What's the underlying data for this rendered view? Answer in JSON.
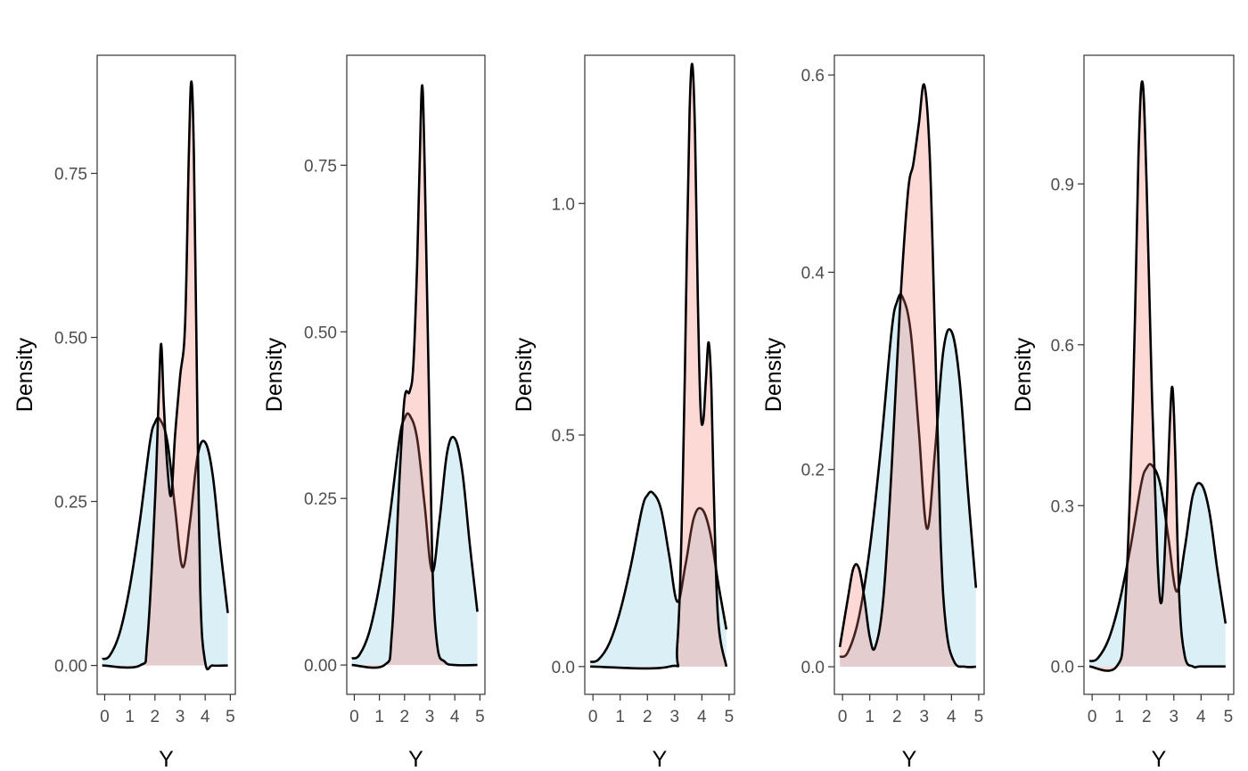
{
  "colors": {
    "red_fill": "#F8766D",
    "blue_fill": "#A6D8E8",
    "line": "#000000",
    "panel_border": "#333333",
    "tick_text": "#4d4d4d"
  },
  "chart_data": [
    {
      "type": "area",
      "xlabel": "Y",
      "ylabel": "Density",
      "x_ticks": [
        "0",
        "1",
        "2",
        "3",
        "4",
        "5"
      ],
      "y_ticks": [
        "0.00",
        "0.25",
        "0.50",
        "0.75"
      ],
      "xlim": [
        -0.3,
        5.2
      ],
      "ylim": [
        -0.044,
        0.93
      ],
      "series": [
        {
          "color": "red",
          "x": [
            -0.1,
            1.4,
            1.7,
            2.0,
            2.15,
            2.25,
            2.35,
            2.5,
            2.65,
            2.8,
            3.0,
            3.2,
            3.35,
            3.45,
            3.55,
            3.65,
            3.8,
            4.0,
            4.3,
            4.9
          ],
          "y": [
            0.0,
            0.0,
            0.04,
            0.25,
            0.41,
            0.49,
            0.4,
            0.3,
            0.26,
            0.35,
            0.44,
            0.52,
            0.78,
            0.89,
            0.78,
            0.5,
            0.12,
            0.005,
            0.0,
            0.0
          ]
        },
        {
          "color": "blue",
          "x": [
            -0.1,
            0.2,
            0.6,
            1.0,
            1.4,
            1.8,
            2.0,
            2.2,
            2.5,
            2.8,
            3.1,
            3.4,
            3.7,
            4.0,
            4.3,
            4.6,
            4.9
          ],
          "y": [
            0.01,
            0.015,
            0.05,
            0.12,
            0.22,
            0.34,
            0.37,
            0.375,
            0.34,
            0.24,
            0.15,
            0.22,
            0.32,
            0.34,
            0.29,
            0.18,
            0.08
          ]
        }
      ]
    },
    {
      "type": "area",
      "xlabel": "Y",
      "ylabel": "Density",
      "x_ticks": [
        "0",
        "1",
        "2",
        "3",
        "4",
        "5"
      ],
      "y_ticks": [
        "0.00",
        "0.25",
        "0.50",
        "0.75"
      ],
      "xlim": [
        -0.3,
        5.2
      ],
      "ylim": [
        -0.044,
        0.915
      ],
      "series": [
        {
          "color": "red",
          "x": [
            -0.1,
            1.2,
            1.5,
            1.8,
            2.0,
            2.2,
            2.35,
            2.5,
            2.6,
            2.7,
            2.8,
            2.95,
            3.1,
            3.3,
            3.6,
            4.0,
            4.9
          ],
          "y": [
            0.0,
            0.0,
            0.05,
            0.28,
            0.4,
            0.41,
            0.45,
            0.6,
            0.75,
            0.87,
            0.75,
            0.45,
            0.16,
            0.03,
            0.005,
            0.0,
            0.0
          ]
        },
        {
          "color": "blue",
          "x": [
            -0.1,
            0.2,
            0.6,
            1.0,
            1.4,
            1.8,
            2.0,
            2.2,
            2.5,
            2.8,
            3.1,
            3.4,
            3.7,
            4.0,
            4.3,
            4.6,
            4.9
          ],
          "y": [
            0.01,
            0.015,
            0.05,
            0.12,
            0.22,
            0.34,
            0.37,
            0.375,
            0.34,
            0.24,
            0.14,
            0.22,
            0.32,
            0.34,
            0.29,
            0.18,
            0.08
          ]
        }
      ]
    },
    {
      "type": "area",
      "xlabel": "Y",
      "ylabel": "Density",
      "x_ticks": [
        "0",
        "1",
        "2",
        "3",
        "4",
        "5"
      ],
      "y_ticks": [
        "0.0",
        "0.5",
        "1.0"
      ],
      "xlim": [
        -0.3,
        5.2
      ],
      "ylim": [
        -0.06,
        1.32
      ],
      "series": [
        {
          "color": "red",
          "x": [
            -0.1,
            2.8,
            3.1,
            3.3,
            3.45,
            3.55,
            3.65,
            3.75,
            3.85,
            3.95,
            4.05,
            4.15,
            4.25,
            4.35,
            4.45,
            4.6,
            4.9
          ],
          "y": [
            0.0,
            0.0,
            0.05,
            0.4,
            0.9,
            1.2,
            1.3,
            1.15,
            0.8,
            0.56,
            0.53,
            0.62,
            0.7,
            0.6,
            0.35,
            0.1,
            0.0
          ]
        },
        {
          "color": "blue",
          "x": [
            -0.1,
            0.2,
            0.6,
            1.0,
            1.4,
            1.8,
            2.0,
            2.2,
            2.5,
            2.8,
            3.1,
            3.4,
            3.7,
            4.0,
            4.3,
            4.6,
            4.9
          ],
          "y": [
            0.01,
            0.015,
            0.05,
            0.12,
            0.22,
            0.34,
            0.37,
            0.375,
            0.34,
            0.24,
            0.14,
            0.22,
            0.32,
            0.34,
            0.29,
            0.18,
            0.08
          ]
        }
      ]
    },
    {
      "type": "area",
      "xlabel": "Y",
      "ylabel": "Density",
      "x_ticks": [
        "0",
        "1",
        "2",
        "3",
        "4",
        "5"
      ],
      "y_ticks": [
        "0.0",
        "0.2",
        "0.4",
        "0.6"
      ],
      "xlim": [
        -0.3,
        5.2
      ],
      "ylim": [
        -0.028,
        0.62
      ],
      "series": [
        {
          "color": "red",
          "x": [
            -0.1,
            0.2,
            0.4,
            0.6,
            0.8,
            1.0,
            1.2,
            1.5,
            1.8,
            2.1,
            2.4,
            2.6,
            2.8,
            3.0,
            3.2,
            3.4,
            3.6,
            3.8,
            4.1,
            4.5,
            4.9
          ],
          "y": [
            0.02,
            0.07,
            0.1,
            0.1,
            0.07,
            0.03,
            0.02,
            0.07,
            0.2,
            0.36,
            0.48,
            0.51,
            0.55,
            0.59,
            0.52,
            0.33,
            0.13,
            0.04,
            0.005,
            0.0,
            0.0
          ]
        },
        {
          "color": "blue",
          "x": [
            -0.1,
            0.2,
            0.6,
            1.0,
            1.4,
            1.8,
            2.0,
            2.2,
            2.5,
            2.8,
            3.1,
            3.4,
            3.7,
            4.0,
            4.3,
            4.6,
            4.9
          ],
          "y": [
            0.01,
            0.015,
            0.05,
            0.12,
            0.22,
            0.34,
            0.37,
            0.375,
            0.34,
            0.24,
            0.14,
            0.22,
            0.32,
            0.34,
            0.29,
            0.18,
            0.08
          ]
        }
      ]
    },
    {
      "type": "area",
      "xlabel": "Y",
      "ylabel": "Density",
      "x_ticks": [
        "0",
        "1",
        "2",
        "3",
        "4",
        "5"
      ],
      "y_ticks": [
        "0.0",
        "0.3",
        "0.6",
        "0.9"
      ],
      "xlim": [
        -0.3,
        5.2
      ],
      "ylim": [
        -0.052,
        1.14
      ],
      "series": [
        {
          "color": "red",
          "x": [
            -0.1,
            0.9,
            1.2,
            1.5,
            1.7,
            1.85,
            2.0,
            2.2,
            2.4,
            2.55,
            2.7,
            2.85,
            2.95,
            3.05,
            3.2,
            3.4,
            3.7,
            4.0,
            4.9
          ],
          "y": [
            0.0,
            0.0,
            0.1,
            0.5,
            0.95,
            1.09,
            0.9,
            0.5,
            0.2,
            0.12,
            0.25,
            0.45,
            0.52,
            0.4,
            0.13,
            0.02,
            0.0,
            0.0,
            0.0
          ]
        },
        {
          "color": "blue",
          "x": [
            -0.1,
            0.2,
            0.6,
            1.0,
            1.4,
            1.8,
            2.0,
            2.2,
            2.5,
            2.8,
            3.1,
            3.4,
            3.7,
            4.0,
            4.3,
            4.6,
            4.9
          ],
          "y": [
            0.01,
            0.015,
            0.05,
            0.12,
            0.22,
            0.34,
            0.37,
            0.375,
            0.34,
            0.24,
            0.14,
            0.22,
            0.32,
            0.34,
            0.29,
            0.18,
            0.08
          ]
        }
      ]
    }
  ]
}
